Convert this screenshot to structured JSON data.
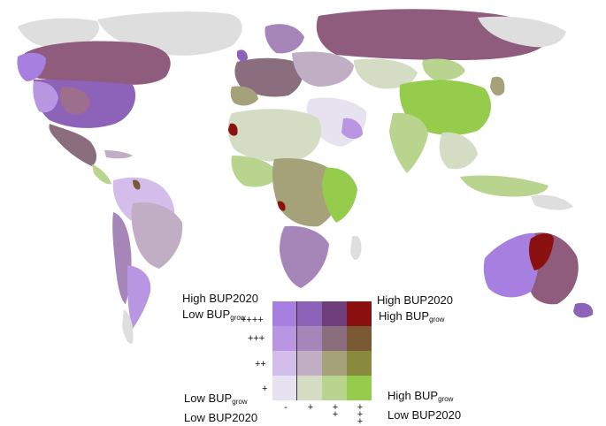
{
  "legend": {
    "top_left_line1": "High BUP2020",
    "top_left_line2_prefix": "Low BUP",
    "top_left_line2_sub": "grow",
    "top_right_line1": "High BUP2020",
    "top_right_line2_prefix": "High BUP",
    "top_right_line2_sub": "grow",
    "bottom_left_line1_prefix": "Low BUP",
    "bottom_left_line1_sub": "grow",
    "bottom_left_line2": "Low BUP2020",
    "bottom_right_line1_prefix": "High BUP",
    "bottom_right_line1_sub": "grow",
    "bottom_right_line2": "Low BUP2020",
    "row_labels": [
      "++++",
      "+++",
      "++",
      "+"
    ],
    "col_labels": [
      "-",
      "+",
      "++",
      "+++"
    ],
    "colors": [
      [
        "#a77fe0",
        "#8c63b8",
        "#6e3f7a",
        "#8b1010"
      ],
      [
        "#b996e2",
        "#a685b8",
        "#8a6e7e",
        "#7a5a32"
      ],
      [
        "#d3bdea",
        "#c0aec4",
        "#a5a27a",
        "#8a8a3e"
      ],
      [
        "#e7e2ef",
        "#d5dcc4",
        "#b8d48e",
        "#96cc4c"
      ]
    ]
  },
  "colors": {
    "ocean": "#ffffff",
    "nodata": "#dedede",
    "border": "#ffffff"
  }
}
